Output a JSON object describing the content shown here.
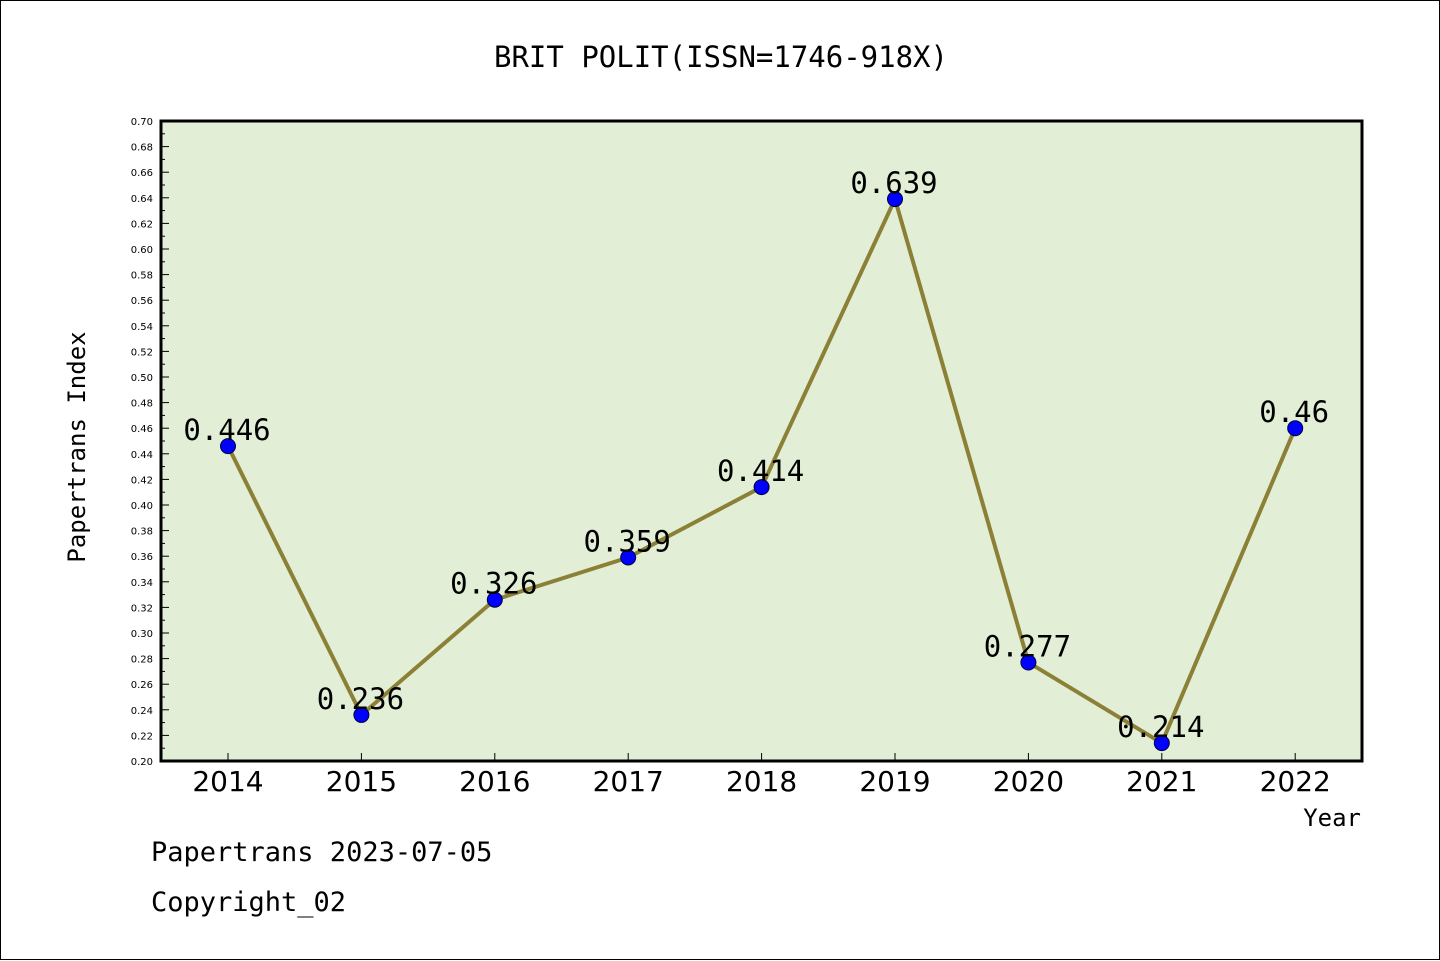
{
  "chart_data": {
    "type": "line",
    "title": "BRIT POLIT(ISSN=1746-918X)",
    "xlabel": "Year",
    "ylabel": "Papertrans Index",
    "categories": [
      "2014",
      "2015",
      "2016",
      "2017",
      "2018",
      "2019",
      "2020",
      "2021",
      "2022"
    ],
    "series": [
      {
        "values": [
          0.446,
          0.236,
          0.326,
          0.359,
          0.414,
          0.639,
          0.277,
          0.214,
          0.46
        ]
      }
    ],
    "data_labels": [
      "0.446",
      "0.236",
      "0.326",
      "0.359",
      "0.414",
      "0.639",
      "0.277",
      "0.214",
      "0.46"
    ],
    "ylim": [
      0.2,
      0.7
    ],
    "y_ticks": [
      "0.20",
      "0.22",
      "0.24",
      "0.26",
      "0.28",
      "0.30",
      "0.32",
      "0.34",
      "0.36",
      "0.38",
      "0.40",
      "0.42",
      "0.44",
      "0.46",
      "0.48",
      "0.50",
      "0.52",
      "0.54",
      "0.56",
      "0.58",
      "0.60",
      "0.62",
      "0.64",
      "0.66",
      "0.68",
      "0.70"
    ],
    "grid": false,
    "colors": {
      "plot_background": "#e2efd6",
      "line": "#8b8036",
      "marker": "#0000ff"
    }
  },
  "footer": {
    "line1": "Papertrans 2023-07-05",
    "line2": "Copyright_02"
  }
}
